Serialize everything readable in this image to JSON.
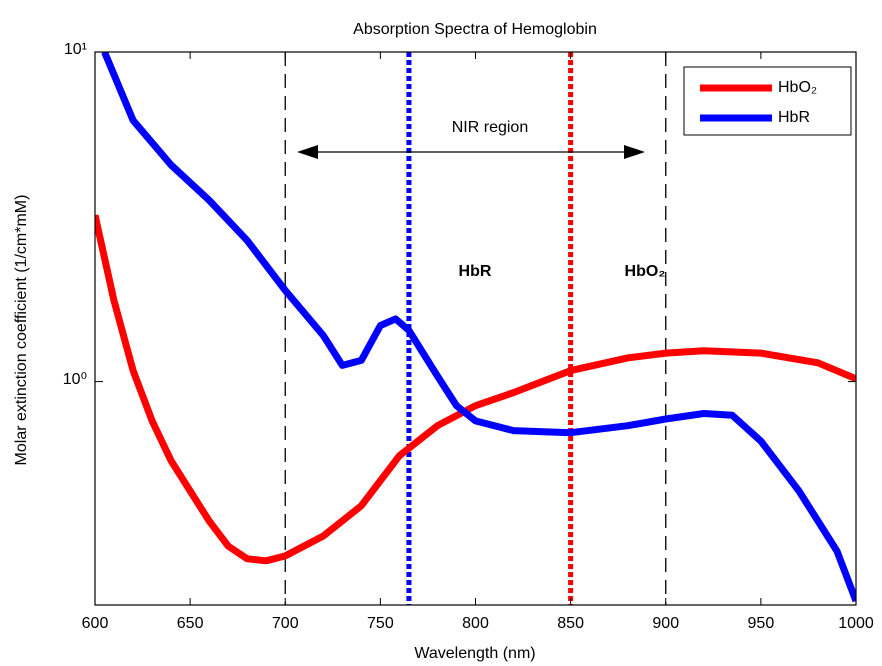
{
  "chart_data": {
    "type": "line",
    "title": "Absorption Spectra of Hemoglobin",
    "xlabel": "Wavelength (nm)",
    "ylabel": "Molar extinction coefficient (1/cm*mM)",
    "ylog": true,
    "xlim": [
      600,
      1000
    ],
    "ylim": [
      0.21,
      10
    ],
    "xticks": [
      600,
      650,
      700,
      750,
      800,
      850,
      900,
      950,
      1000
    ],
    "yticks": [
      {
        "value": 1,
        "label": "10⁰"
      },
      {
        "value": 10,
        "label": "10¹"
      }
    ],
    "legend": "upper right",
    "series": [
      {
        "name": "HbO₂",
        "color": "#ff0000",
        "x": [
          600,
          610,
          620,
          630,
          640,
          650,
          660,
          670,
          680,
          690,
          700,
          720,
          740,
          760,
          780,
          800,
          820,
          850,
          880,
          900,
          920,
          950,
          980,
          1000
        ],
        "values": [
          3.2,
          1.76,
          1.08,
          0.76,
          0.575,
          0.466,
          0.378,
          0.317,
          0.29,
          0.286,
          0.296,
          0.34,
          0.42,
          0.596,
          0.735,
          0.845,
          0.926,
          1.08,
          1.18,
          1.22,
          1.24,
          1.22,
          1.14,
          1.02
        ]
      },
      {
        "name": "HbR",
        "color": "#0000ff",
        "x": [
          605,
          620,
          640,
          660,
          680,
          700,
          720,
          730,
          740,
          750,
          758,
          765,
          780,
          790,
          800,
          820,
          850,
          880,
          900,
          920,
          935,
          950,
          970,
          990,
          1000
        ],
        "values": [
          10,
          6.2,
          4.54,
          3.55,
          2.68,
          1.89,
          1.38,
          1.12,
          1.16,
          1.48,
          1.55,
          1.43,
          1.04,
          0.845,
          0.76,
          0.71,
          0.7,
          0.735,
          0.77,
          0.8,
          0.79,
          0.66,
          0.466,
          0.306,
          0.216
        ]
      }
    ],
    "vlines": [
      {
        "x": 700,
        "color": "#000000",
        "style": "dashed"
      },
      {
        "x": 900,
        "color": "#000000",
        "style": "dashed"
      },
      {
        "x": 765,
        "color": "#0000ff",
        "style": "dotted"
      },
      {
        "x": 850,
        "color": "#ff0000",
        "style": "dotted"
      }
    ],
    "annotations": [
      {
        "text": "NIR region",
        "color": "#000000"
      },
      {
        "text": "HbR",
        "color": "#3b3bf0"
      },
      {
        "text": "HbO₂",
        "color": "#f03a3a"
      }
    ]
  }
}
